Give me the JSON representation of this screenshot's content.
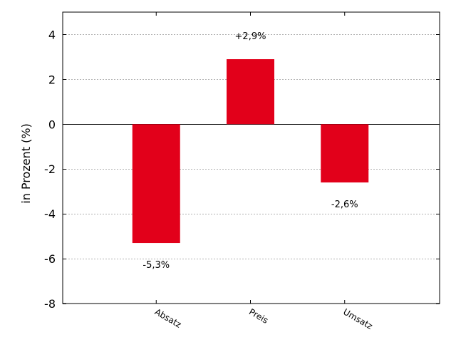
{
  "chart_data": {
    "type": "bar",
    "categories": [
      "Absatz",
      "Preis",
      "Umsatz"
    ],
    "values": [
      -5.3,
      2.9,
      -2.6
    ],
    "value_labels": [
      "-5,3%",
      "+2,9%",
      "-2,6%"
    ],
    "title": "",
    "xlabel": "",
    "ylabel": "in Prozent (%)",
    "ylim": [
      -8,
      5
    ],
    "yticks": [
      -8,
      -6,
      -4,
      -2,
      0,
      2,
      4
    ],
    "ytick_labels": [
      "-8",
      "-6",
      "-4",
      "-2",
      "0",
      "2",
      "4"
    ],
    "grid": "horizontal-dotted",
    "bar_color": "#e2001a",
    "grid_color": "#b0b0b0",
    "zero_line_color": "#000000"
  }
}
